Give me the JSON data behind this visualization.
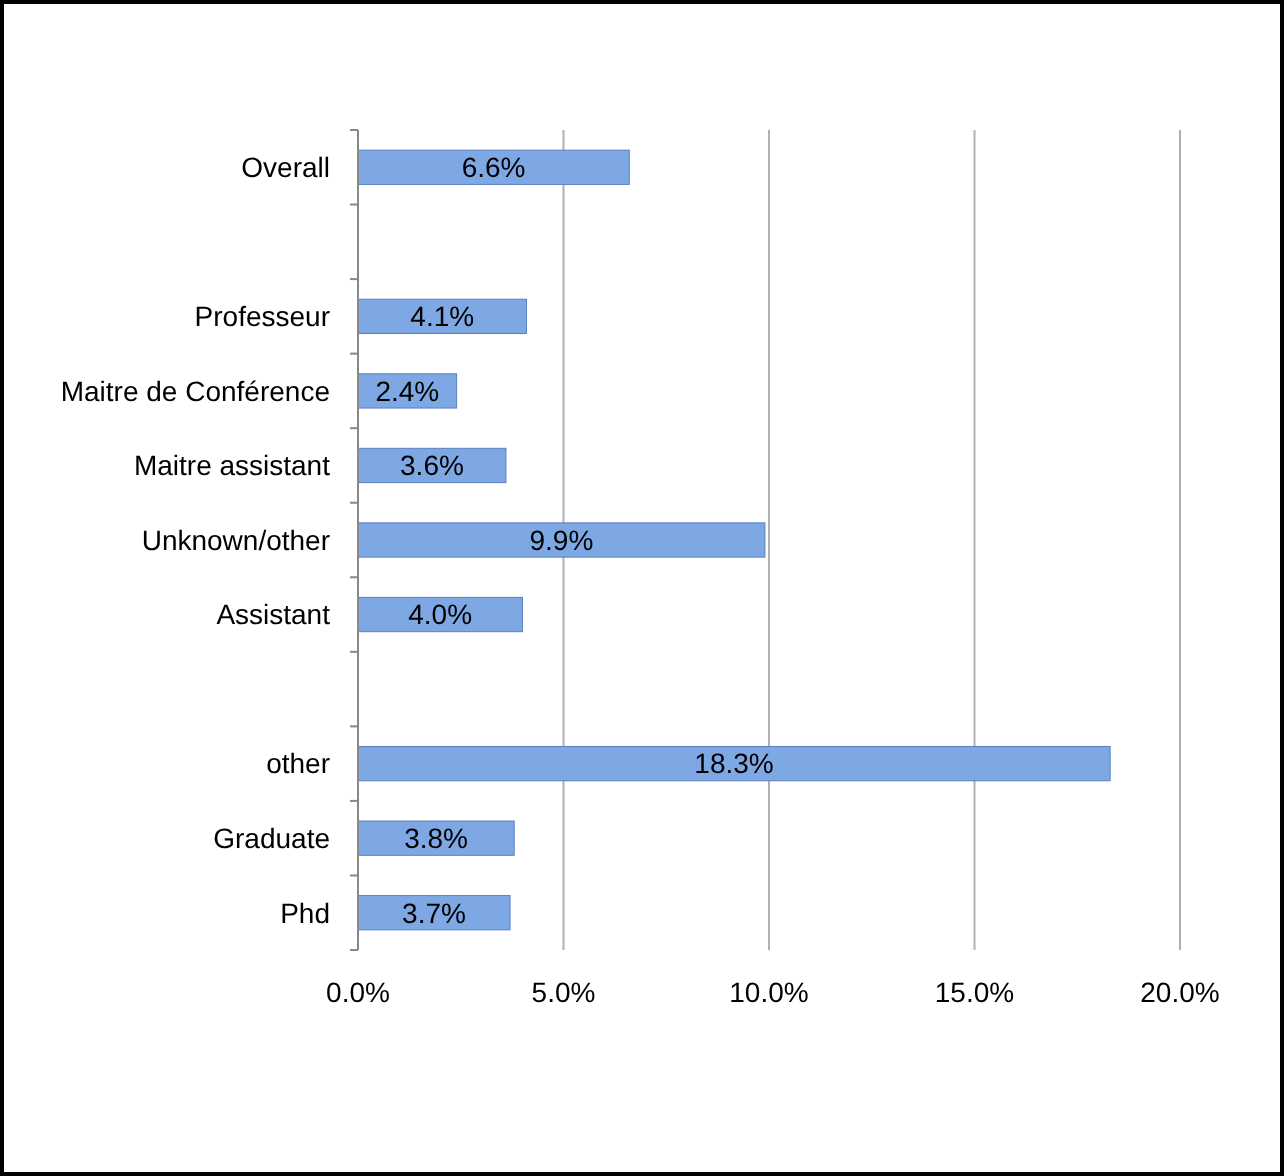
{
  "chart_data": {
    "type": "bar",
    "orientation": "horizontal",
    "categories": [
      "Overall",
      null,
      "Professeur",
      "Maitre de Conférence",
      "Maitre assistant",
      "Unknown/other",
      "Assistant",
      null,
      "other",
      "Graduate",
      "Phd"
    ],
    "values": [
      6.6,
      null,
      4.1,
      2.4,
      3.6,
      9.9,
      4.0,
      null,
      18.3,
      3.8,
      3.7
    ],
    "value_labels": [
      "6.6%",
      null,
      "4.1%",
      "2.4%",
      "3.6%",
      "9.9%",
      "4.0%",
      null,
      "18.3%",
      "3.8%",
      "3.7%"
    ],
    "color": "#7ea8e4",
    "xlim": [
      0,
      20
    ],
    "xticks": [
      {
        "value": 0,
        "label": "0.0%"
      },
      {
        "value": 5,
        "label": "5.0%"
      },
      {
        "value": 10,
        "label": "10.0%"
      },
      {
        "value": 15,
        "label": "15.0%"
      },
      {
        "value": 20,
        "label": "20.0%"
      }
    ],
    "grid": "x"
  }
}
